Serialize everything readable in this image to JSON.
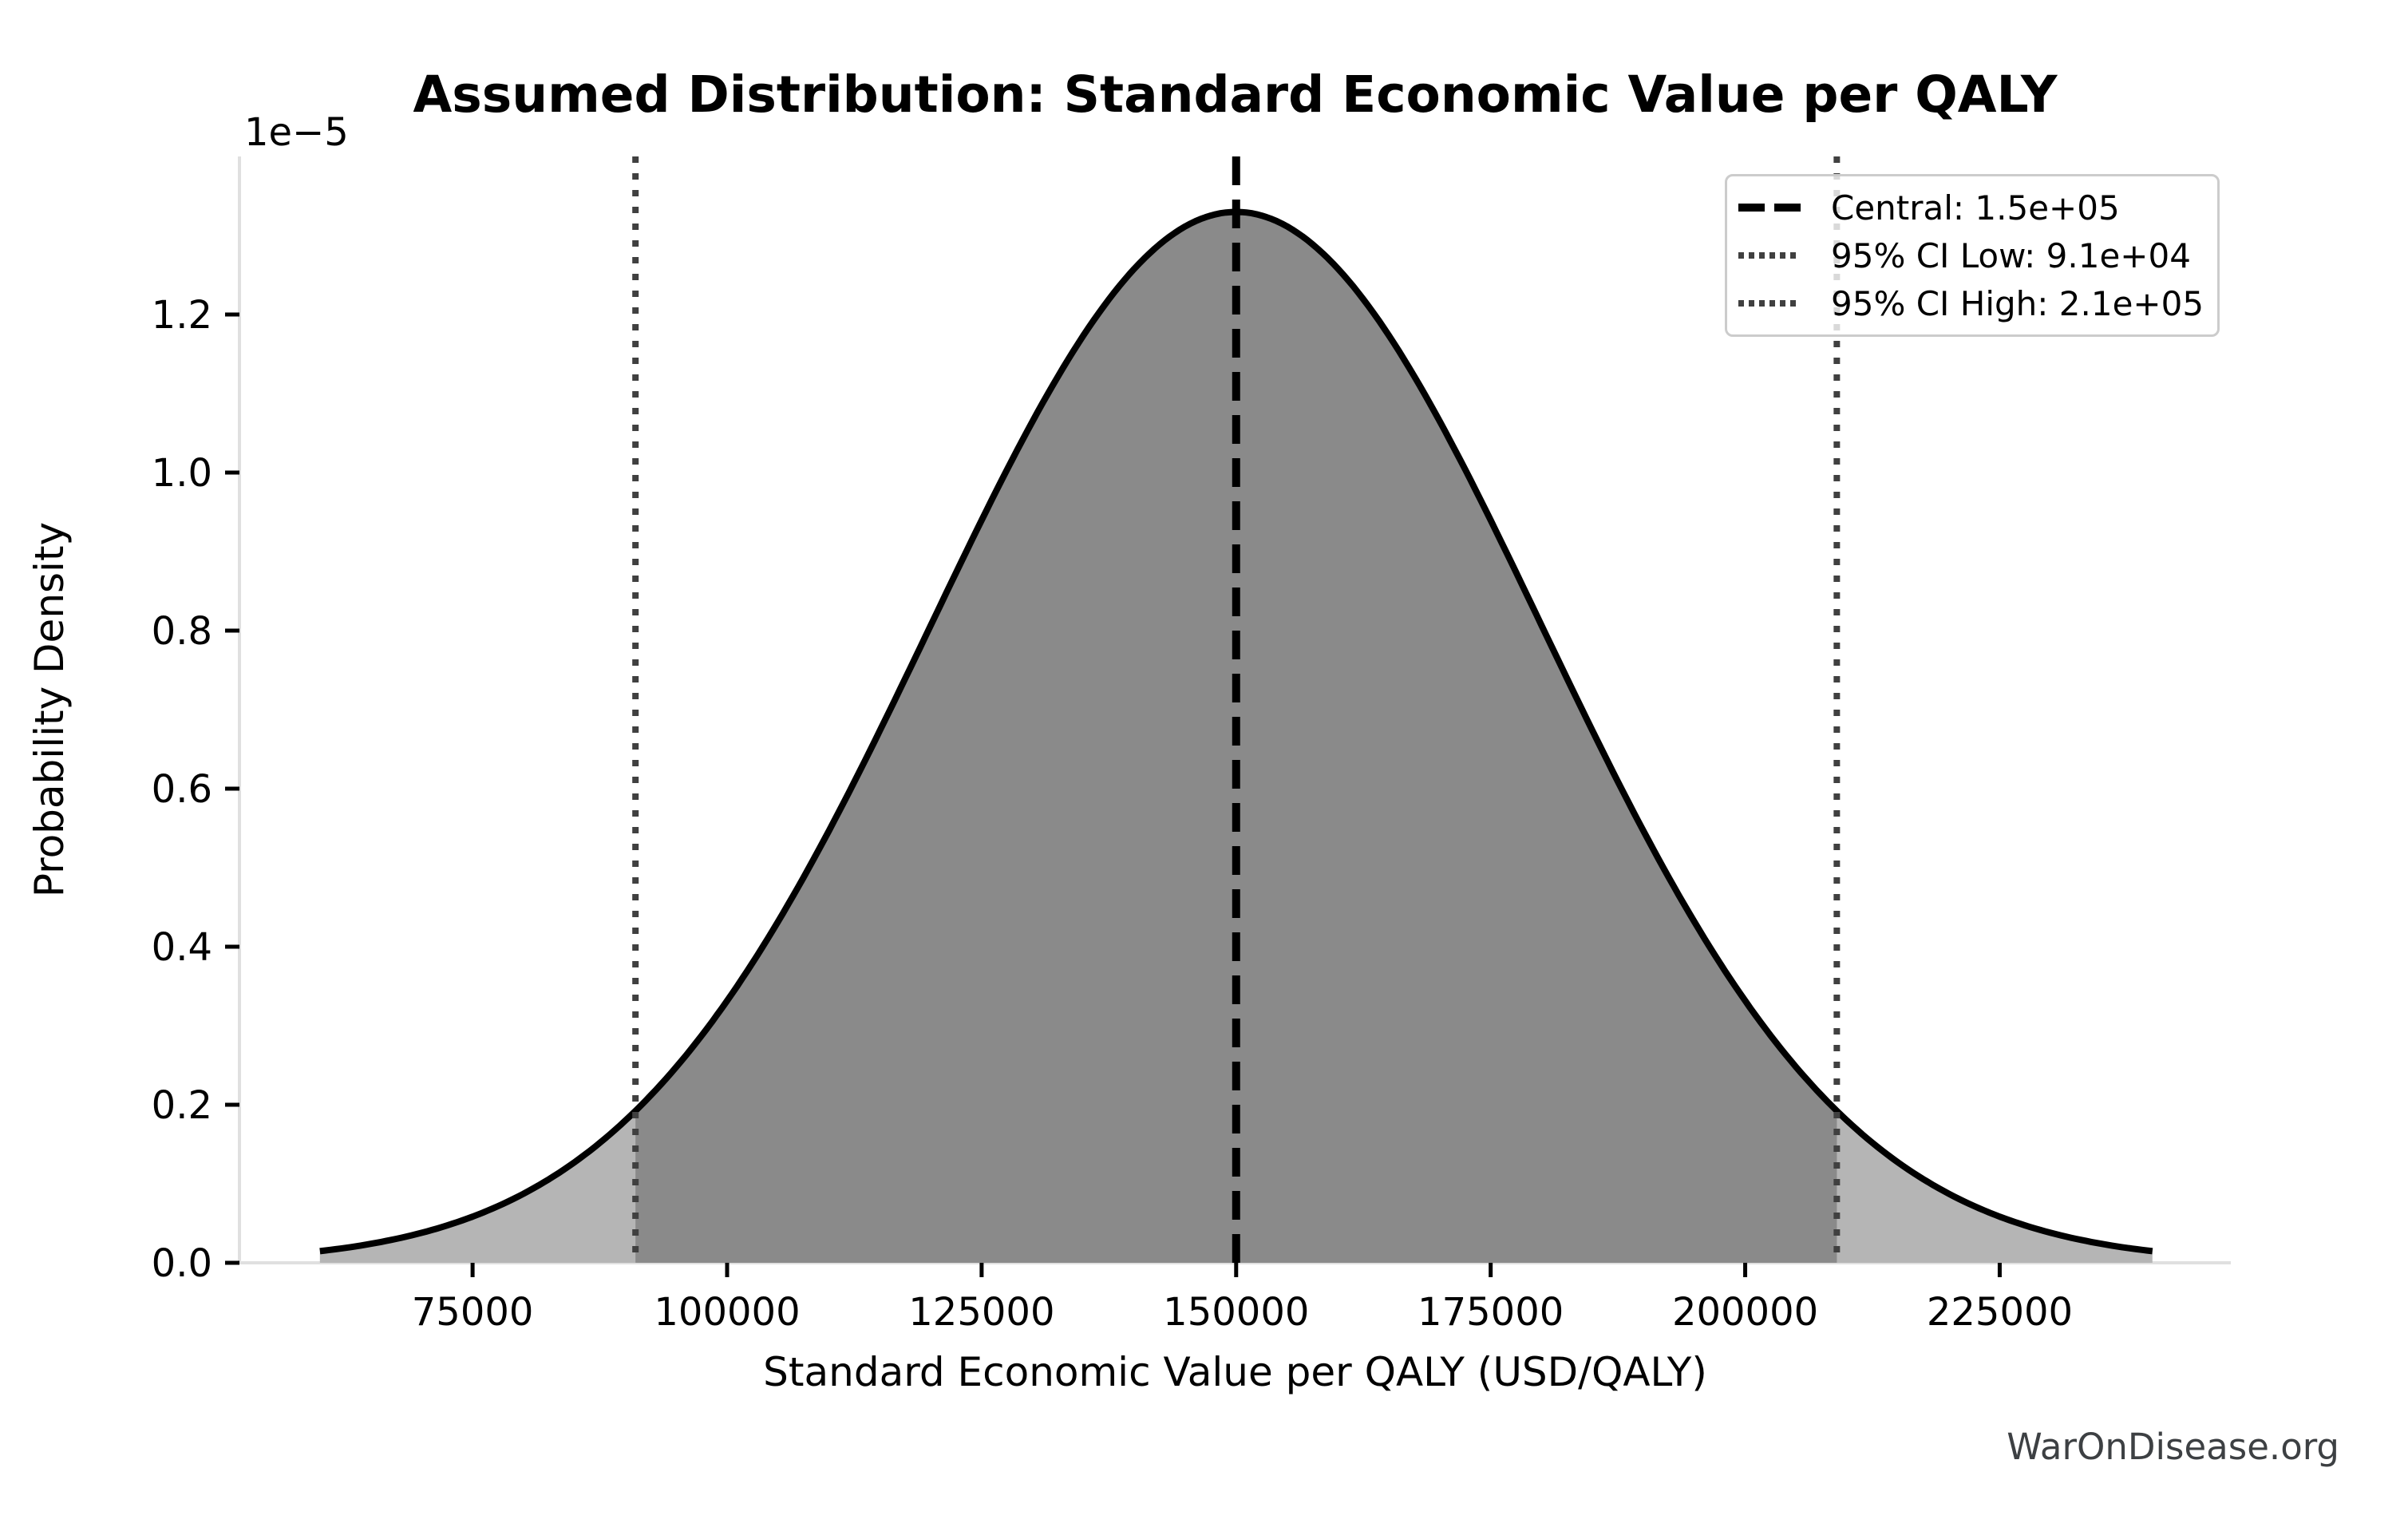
{
  "page": {
    "background": "#ffffff",
    "watermark": "WarOnDisease.org"
  },
  "chart_data": {
    "type": "area",
    "title": "Assumed Distribution: Standard Economic Value per QALY",
    "xlabel": "Standard Economic Value per QALY (USD/QALY)",
    "ylabel": "Probability Density",
    "y_offset_label": "1e−5",
    "grid": false,
    "legend_position": "upper right",
    "distribution": {
      "family": "normal",
      "mean": 150000,
      "std": 30000,
      "x_min": 60000,
      "x_max": 240000,
      "peak_density_1e5": 1.33
    },
    "xlim": [
      52100,
      247700
    ],
    "ylim_1e5": [
      0,
      1.4
    ],
    "x_ticks": [
      {
        "value": 75000,
        "label": "75000"
      },
      {
        "value": 100000,
        "label": "100000"
      },
      {
        "value": 125000,
        "label": "125000"
      },
      {
        "value": 150000,
        "label": "150000"
      },
      {
        "value": 175000,
        "label": "175000"
      },
      {
        "value": 200000,
        "label": "200000"
      },
      {
        "value": 225000,
        "label": "225000"
      }
    ],
    "y_tick_scale": 1e-05,
    "y_ticks": [
      {
        "value": 0.0,
        "label": "0.0"
      },
      {
        "value": 0.2,
        "label": "0.2"
      },
      {
        "value": 0.4,
        "label": "0.4"
      },
      {
        "value": 0.6,
        "label": "0.6"
      },
      {
        "value": 0.8,
        "label": "0.8"
      },
      {
        "value": 1.0,
        "label": "1.0"
      },
      {
        "value": 1.2,
        "label": "1.2"
      }
    ],
    "lines": [
      {
        "name": "central",
        "value": 150000,
        "style": "dashed",
        "color": "#000000",
        "legend_label": "Central: 1.5e+05"
      },
      {
        "name": "ci_low",
        "value": 91000,
        "style": "dotted",
        "color": "#404040",
        "legend_label": "95% CI Low: 9.1e+04"
      },
      {
        "name": "ci_high",
        "value": 209000,
        "style": "dotted",
        "color": "#404040",
        "legend_label": "95% CI High: 2.1e+05"
      }
    ],
    "fills": {
      "full_area_color": "#b5b5b5",
      "ci_area_color": "#8a8a8a"
    },
    "curve_color": "#000000",
    "spine_color": "#e0e0e0",
    "tick_color": "#000000"
  }
}
